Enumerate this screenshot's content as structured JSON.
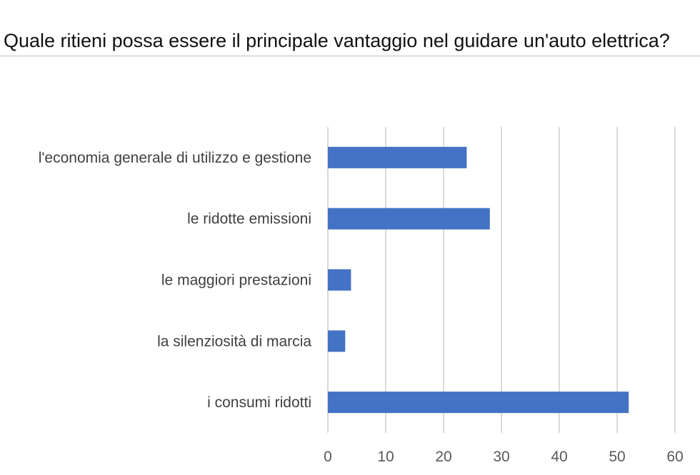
{
  "header": {
    "question": "Quale ritieni possa essere il principale vantaggio nel guidare un'auto elettrica?"
  },
  "colors": {
    "bar": "#4472c4",
    "grid": "#d9d9d9"
  },
  "chart_data": {
    "type": "bar",
    "orientation": "horizontal",
    "title": "",
    "xlabel": "",
    "ylabel": "",
    "categories": [
      "l'economia generale di utilizzo e gestione",
      "le ridotte emissioni",
      "le maggiori prestazioni",
      "la silenziosità di marcia",
      "i consumi ridotti"
    ],
    "values": [
      24,
      28,
      4,
      3,
      52
    ],
    "xlim": [
      0,
      60
    ],
    "xticks": [
      "0",
      "10",
      "20",
      "30",
      "40",
      "50",
      "60"
    ],
    "grid": true,
    "legend": "none"
  }
}
